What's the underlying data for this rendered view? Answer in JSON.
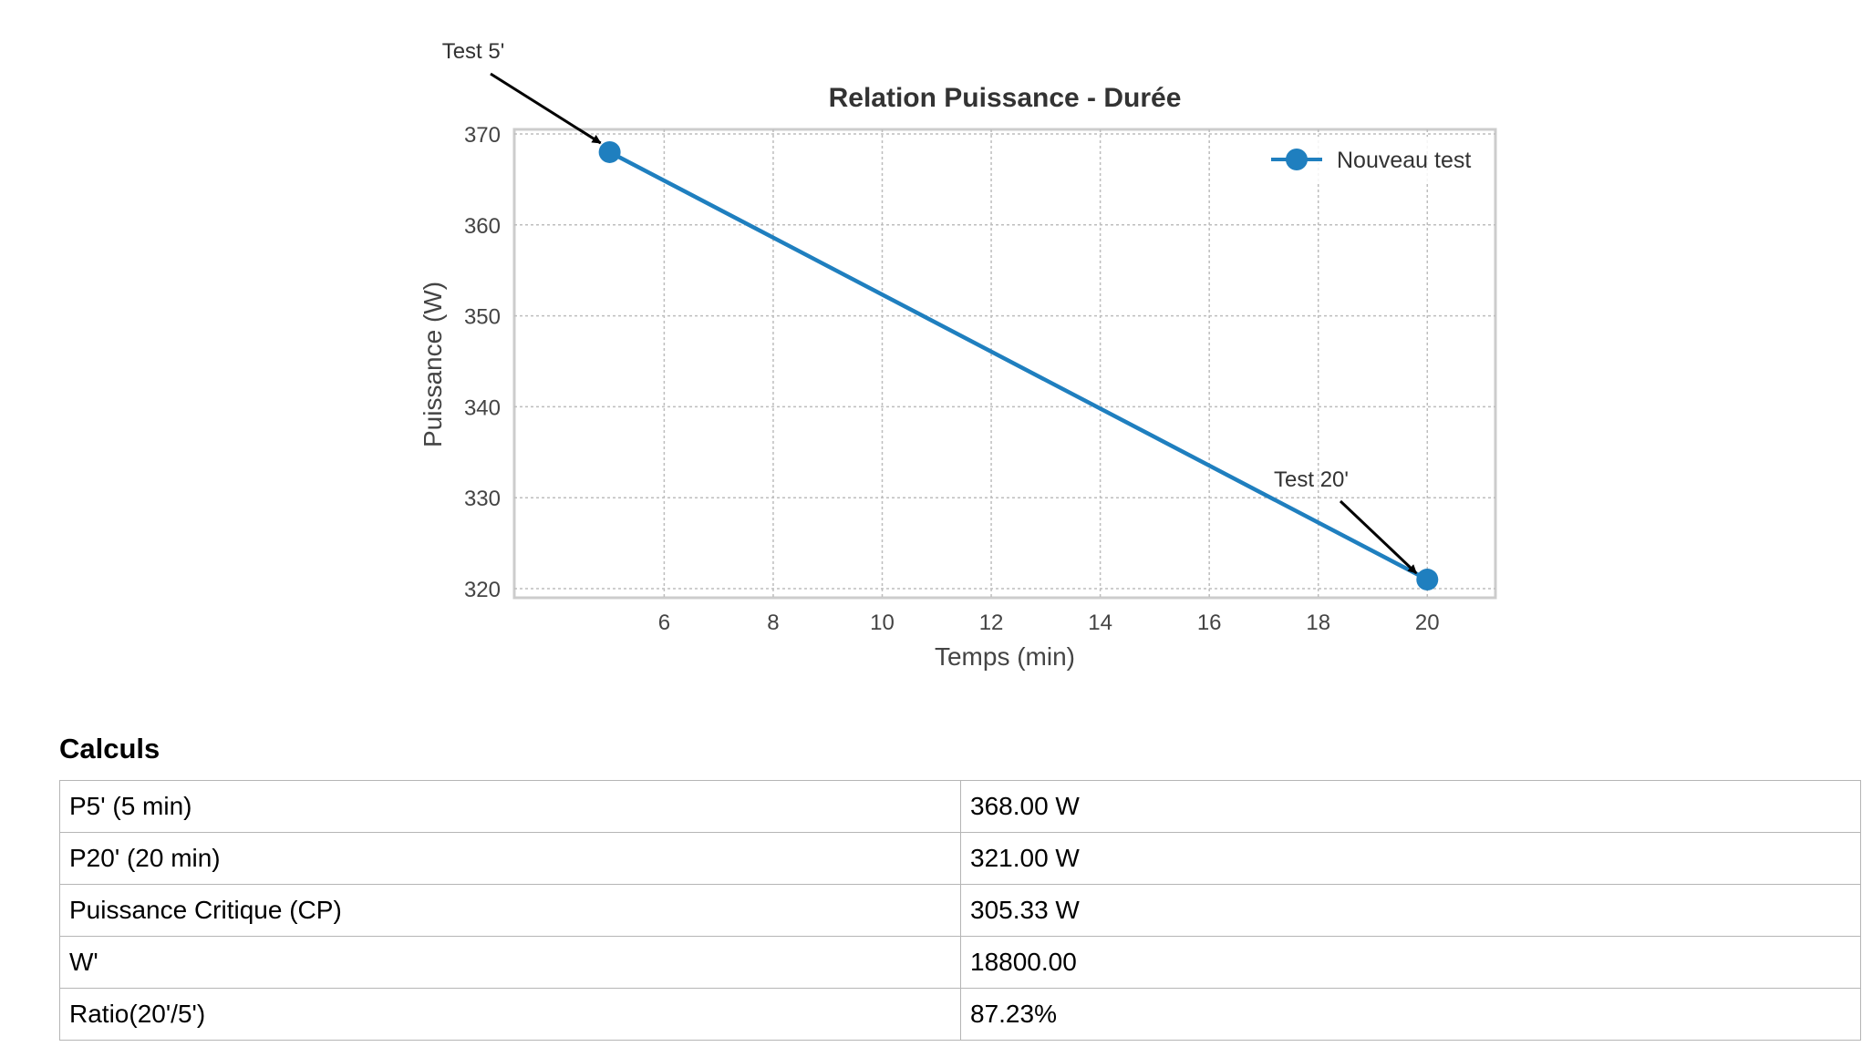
{
  "chart_data": {
    "type": "line",
    "title": "Relation Puissance - Durée",
    "xlabel": "Temps (min)",
    "ylabel": "Puissance (W)",
    "xlim": [
      3.25,
      21.25
    ],
    "ylim": [
      319,
      370.5
    ],
    "xticks": [
      6,
      8,
      10,
      12,
      14,
      16,
      18,
      20
    ],
    "yticks": [
      320,
      330,
      340,
      350,
      360,
      370
    ],
    "grid": true,
    "legend": "top-right",
    "series": [
      {
        "name": "Nouveau test",
        "color": "#1f7fbf",
        "x": [
          5,
          20
        ],
        "y": [
          368,
          321
        ]
      }
    ],
    "annotations": [
      {
        "text": "Test 5'",
        "x": 5,
        "y": 368
      },
      {
        "text": "Test 20'",
        "x": 20,
        "y": 321
      }
    ]
  },
  "calculs": {
    "title": "Calculs",
    "rows": [
      {
        "label": "P5' (5 min)",
        "value": "368.00 W"
      },
      {
        "label": "P20' (20 min)",
        "value": "321.00 W"
      },
      {
        "label": "Puissance Critique (CP)",
        "value": "305.33 W"
      },
      {
        "label": "W'",
        "value": "18800.00"
      },
      {
        "label": "Ratio(20'/5')",
        "value": "87.23%"
      }
    ]
  }
}
